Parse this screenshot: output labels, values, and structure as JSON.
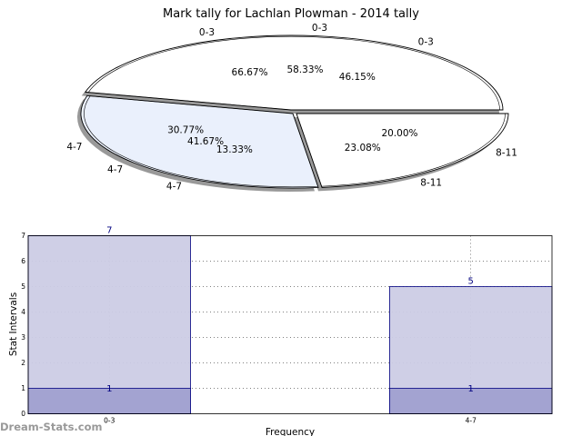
{
  "title": "Mark tally for Lachlan Plowman - 2014 tally",
  "watermark": "Dream-Stats.com",
  "colors": {
    "pie_light": "#ffffff",
    "pie_blue": "#eaf0fc",
    "bar_total": "#ccccE5",
    "bar_sub": "#a3a3d1",
    "bar_edge": "#000080",
    "shadow": "#999999"
  },
  "chart_data": [
    {
      "type": "pie",
      "title": "Mark tally for Lachlan Plowman - 2014 tally",
      "rings": [
        {
          "name": "outer",
          "slices": [
            {
              "label": "0-3",
              "percent": "46.15%",
              "value": 46.15
            },
            {
              "label": "4-7",
              "percent": "30.77%",
              "value": 30.77
            },
            {
              "label": "8-11",
              "percent": "23.08%",
              "value": 23.08
            }
          ]
        },
        {
          "name": "middle",
          "slices": [
            {
              "label": "0-3",
              "percent": "58.33%",
              "value": 58.33
            },
            {
              "label": "4-7",
              "percent": "41.67%",
              "value": 41.67
            },
            {
              "label": "8-11",
              "percent": "",
              "value": 0
            }
          ]
        },
        {
          "name": "inner",
          "slices": [
            {
              "label": "0-3",
              "percent": "66.67%",
              "value": 66.67
            },
            {
              "label": "4-7",
              "percent": "13.33%",
              "value": 13.33
            },
            {
              "label": "8-11",
              "percent": "20.00%",
              "value": 20.0
            }
          ]
        }
      ]
    },
    {
      "type": "bar",
      "categories": [
        "0-3",
        "4-7"
      ],
      "series": [
        {
          "values": [
            7,
            5
          ]
        },
        {
          "values": [
            1,
            1
          ]
        }
      ],
      "value_labels": [
        [
          "7",
          "5"
        ],
        [
          "1",
          "1"
        ]
      ],
      "xlabel": "Frequency",
      "ylabel": "Stat Intervals",
      "ylim": [
        0,
        7
      ],
      "yticks": [
        "0",
        "1",
        "2",
        "3",
        "4",
        "5",
        "6",
        "7"
      ],
      "grid": true
    }
  ]
}
